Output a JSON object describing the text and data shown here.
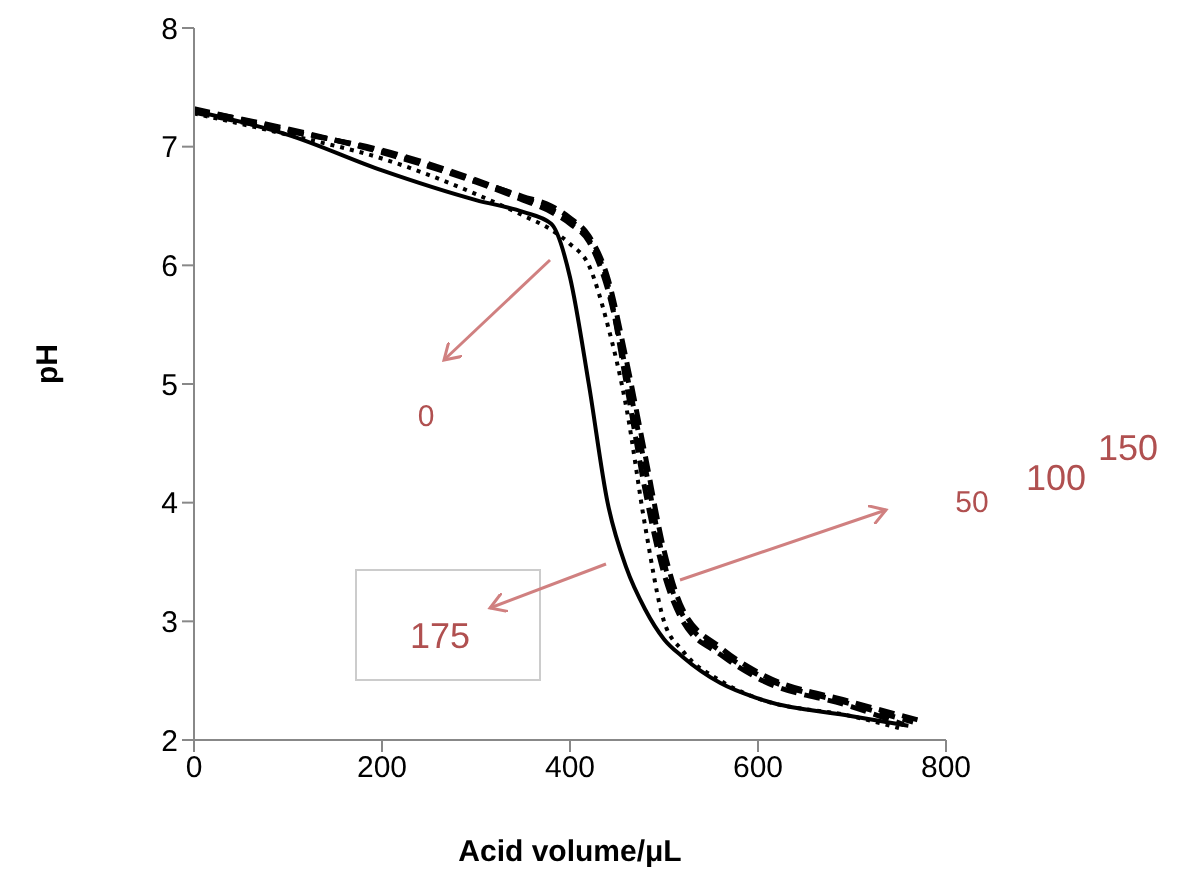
{
  "chart_data": {
    "type": "line",
    "xlabel": "Acid volume/μL",
    "ylabel": "pH",
    "xlim": [
      0,
      800
    ],
    "xticks": [
      0,
      200,
      400,
      600,
      800
    ],
    "ylim": [
      2,
      8
    ],
    "yticks": [
      2,
      3,
      4,
      5,
      6,
      7,
      8
    ],
    "grid": false,
    "legend": false,
    "marker": "none",
    "x": [
      0,
      100,
      200,
      300,
      350,
      380,
      400,
      420,
      440,
      460,
      480,
      500,
      520,
      560,
      600,
      700,
      760
    ],
    "series": [
      {
        "color": "#000000",
        "line_style": "dotted",
        "x": [
          0,
          100,
          200,
          300,
          350,
          380,
          400,
          420,
          440,
          460,
          480,
          500,
          520,
          560,
          600,
          700,
          750
        ],
        "values": [
          7.28,
          7.1,
          6.9,
          6.6,
          6.42,
          6.3,
          6.18,
          6.0,
          5.5,
          4.8,
          3.8,
          3.0,
          2.75,
          2.5,
          2.35,
          2.2,
          2.1
        ]
      },
      {
        "color": "#000000",
        "line_style": "dashed",
        "x": [
          0,
          100,
          200,
          300,
          350,
          380,
          400,
          420,
          440,
          460,
          480,
          500,
          520,
          560,
          600,
          700,
          765
        ],
        "values": [
          7.31,
          7.15,
          6.95,
          6.7,
          6.55,
          6.45,
          6.35,
          6.2,
          5.8,
          5.1,
          4.3,
          3.5,
          3.05,
          2.75,
          2.55,
          2.3,
          2.15
        ]
      },
      {
        "color": "#000000",
        "line_style": "dashed",
        "x": [
          0,
          100,
          200,
          300,
          350,
          380,
          400,
          420,
          440,
          460,
          480,
          500,
          520,
          560,
          600,
          700,
          755
        ],
        "values": [
          7.29,
          7.13,
          6.97,
          6.72,
          6.57,
          6.47,
          6.38,
          6.22,
          5.85,
          5.0,
          4.1,
          3.4,
          3.0,
          2.72,
          2.52,
          2.28,
          2.13
        ]
      },
      {
        "color": "#000000",
        "line_style": "dashed",
        "x": [
          0,
          100,
          200,
          300,
          350,
          380,
          400,
          420,
          440,
          460,
          480,
          500,
          520,
          560,
          600,
          700,
          770
        ],
        "values": [
          7.32,
          7.14,
          6.96,
          6.71,
          6.58,
          6.5,
          6.4,
          6.25,
          5.9,
          5.2,
          4.4,
          3.6,
          3.1,
          2.78,
          2.57,
          2.32,
          2.17
        ]
      },
      {
        "color": "#000000",
        "line_style": "solid",
        "values": [
          7.3,
          7.1,
          6.8,
          6.55,
          6.45,
          6.35,
          5.9,
          5.0,
          4.0,
          3.45,
          3.1,
          2.85,
          2.7,
          2.48,
          2.35,
          2.2,
          2.12
        ]
      }
    ],
    "annotations": [
      "0",
      "50",
      "100",
      "150",
      "175"
    ]
  }
}
